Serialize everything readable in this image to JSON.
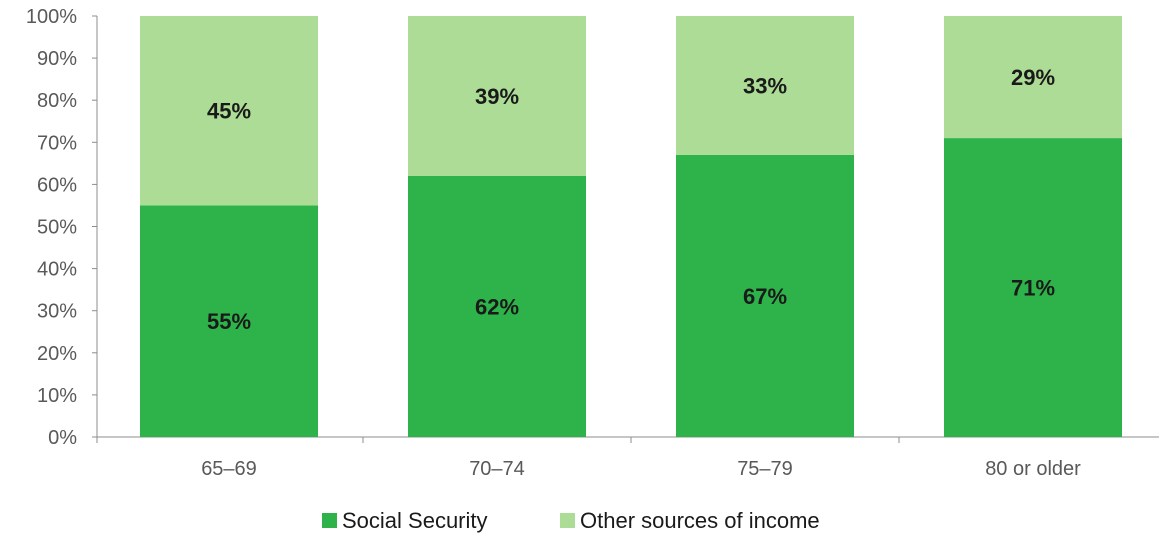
{
  "chart_data": {
    "type": "bar",
    "stacked": true,
    "categories": [
      "65–69",
      "70–74",
      "75–79",
      "80 or older"
    ],
    "series": [
      {
        "name": "Social Security",
        "values": [
          55,
          62,
          67,
          71
        ],
        "labels": [
          "55%",
          "62%",
          "67%",
          "71%"
        ],
        "color": "#2db34a"
      },
      {
        "name": "Other sources of income",
        "values": [
          45,
          39,
          33,
          29
        ],
        "labels": [
          "45%",
          "39%",
          "33%",
          "29%"
        ],
        "color": "#acdc95"
      }
    ],
    "ylim": [
      0,
      100
    ],
    "yticks": [
      "0%",
      "10%",
      "20%",
      "30%",
      "40%",
      "50%",
      "60%",
      "70%",
      "80%",
      "90%",
      "100%"
    ],
    "legend_position": "bottom",
    "grid": false
  }
}
